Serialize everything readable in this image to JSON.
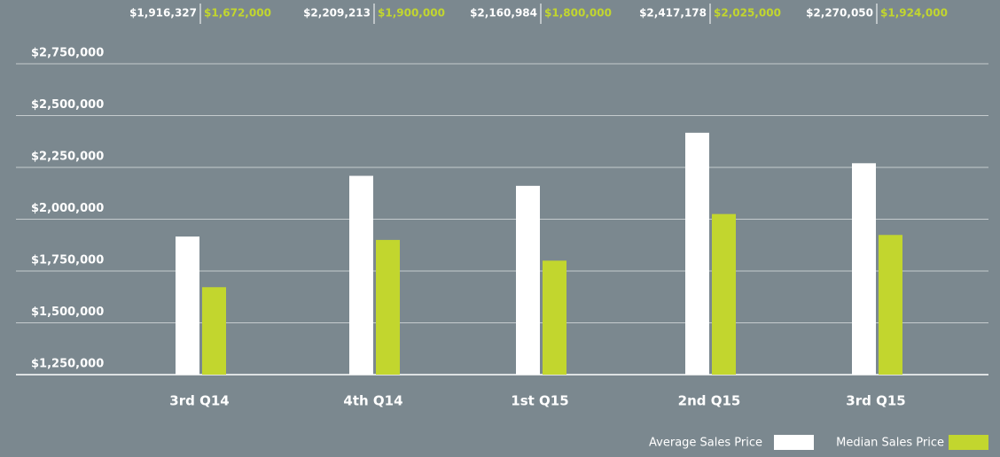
{
  "chart_data": {
    "type": "bar",
    "categories": [
      "3rd Q14",
      "4th Q14",
      "1st Q15",
      "2nd Q15",
      "3rd Q15"
    ],
    "series": [
      {
        "name": "Average Sales Price",
        "color": "#ffffff",
        "values": [
          1916327,
          2209213,
          2160984,
          2417178,
          2270050
        ],
        "value_labels": [
          "$1,916,327",
          "$2,209,213",
          "$2,160,984",
          "$2,417,178",
          "$2,270,050"
        ]
      },
      {
        "name": "Median Sales Price",
        "color": "#c2d62e",
        "values": [
          1672000,
          1900000,
          1800000,
          2025000,
          1924000
        ],
        "value_labels": [
          "$1,672,000",
          "$1,900,000",
          "$1,800,000",
          "$2,025,000",
          "$1,924,000"
        ]
      }
    ],
    "ylim": [
      1250000,
      2750000
    ],
    "yticks": [
      {
        "value": 1250000,
        "label": "$1,250,000"
      },
      {
        "value": 1500000,
        "label": "$1,500,000"
      },
      {
        "value": 1750000,
        "label": "$1,750,000"
      },
      {
        "value": 2000000,
        "label": "$2,000,000"
      },
      {
        "value": 2250000,
        "label": "$2,250,000"
      },
      {
        "value": 2500000,
        "label": "$2,500,000"
      },
      {
        "value": 2750000,
        "label": "$2,750,000"
      }
    ],
    "grid": true,
    "legend": "bottom-right"
  }
}
